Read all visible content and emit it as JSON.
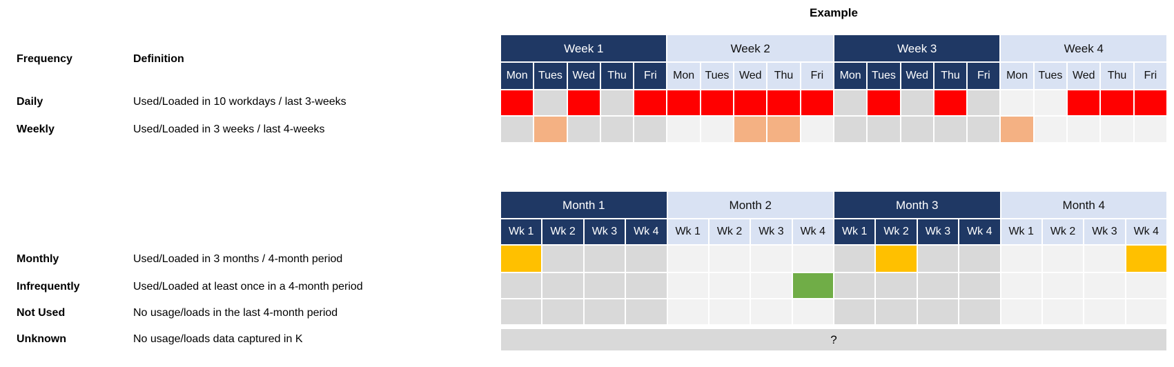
{
  "title": "Example",
  "legend": {
    "frequency_header": "Frequency",
    "definition_header": "Definition",
    "rows": [
      {
        "label": "Daily",
        "definition": "Used/Loaded in 10 workdays / last 3-weeks"
      },
      {
        "label": "Weekly",
        "definition": "Used/Loaded in 3 weeks / last 4-weeks"
      },
      {
        "label": "Monthly",
        "definition": "Used/Loaded in 3 months / 4-month period"
      },
      {
        "label": "Infrequently",
        "definition": "Used/Loaded at least once in a 4-month period"
      },
      {
        "label": "Not Used",
        "definition": "No usage/loads in the last 4-month period"
      },
      {
        "label": "Unknown",
        "definition": "No usage/loads data captured in K"
      }
    ]
  },
  "colors": {
    "header_dark": "#1F3864",
    "header_light": "#D9E2F3",
    "empty_dark": "#D9D9D9",
    "empty_light": "#F2F2F2",
    "red": "#FF0000",
    "orange": "#F4B183",
    "gold": "#FFC000",
    "green": "#70AD47",
    "unknown_gray": "#D9D9D9"
  },
  "week_table": {
    "groups": [
      {
        "label": "Week 1",
        "shade": "dark"
      },
      {
        "label": "Week 2",
        "shade": "light"
      },
      {
        "label": "Week 3",
        "shade": "dark"
      },
      {
        "label": "Week 4",
        "shade": "light"
      }
    ],
    "sub_labels": [
      "Mon",
      "Tues",
      "Wed",
      "Thu",
      "Fri"
    ],
    "rows": [
      {
        "name": "daily",
        "cells": [
          "red",
          "empty",
          "red",
          "empty",
          "red",
          "red",
          "red",
          "red",
          "red",
          "red",
          "empty",
          "red",
          "empty",
          "red",
          "empty",
          "empty",
          "empty",
          "red",
          "red",
          "red"
        ]
      },
      {
        "name": "weekly",
        "cells": [
          "empty",
          "orange",
          "empty",
          "empty",
          "empty",
          "empty",
          "empty",
          "orange",
          "orange",
          "empty",
          "empty",
          "empty",
          "empty",
          "empty",
          "empty",
          "orange",
          "empty",
          "empty",
          "empty",
          "empty"
        ]
      }
    ]
  },
  "month_table": {
    "groups": [
      {
        "label": "Month 1",
        "shade": "dark"
      },
      {
        "label": "Month 2",
        "shade": "light"
      },
      {
        "label": "Month 3",
        "shade": "dark"
      },
      {
        "label": "Month 4",
        "shade": "light"
      }
    ],
    "sub_labels": [
      "Wk 1",
      "Wk 2",
      "Wk 3",
      "Wk 4"
    ],
    "rows": [
      {
        "name": "monthly",
        "cells": [
          "gold",
          "empty",
          "empty",
          "empty",
          "empty",
          "empty",
          "empty",
          "empty",
          "empty",
          "gold",
          "empty",
          "empty",
          "empty",
          "empty",
          "empty",
          "gold"
        ]
      },
      {
        "name": "infrequently",
        "cells": [
          "empty",
          "empty",
          "empty",
          "empty",
          "empty",
          "empty",
          "empty",
          "green",
          "empty",
          "empty",
          "empty",
          "empty",
          "empty",
          "empty",
          "empty",
          "empty"
        ]
      },
      {
        "name": "not-used",
        "cells": [
          "empty",
          "empty",
          "empty",
          "empty",
          "empty",
          "empty",
          "empty",
          "empty",
          "empty",
          "empty",
          "empty",
          "empty",
          "empty",
          "empty",
          "empty",
          "empty"
        ]
      }
    ],
    "unknown_label": "?"
  }
}
